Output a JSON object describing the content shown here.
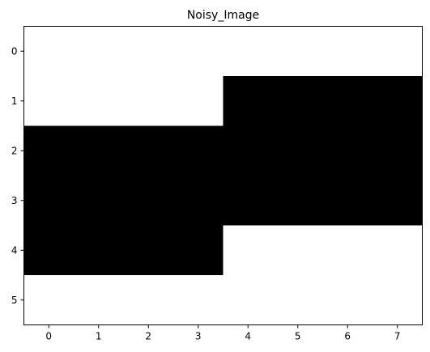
{
  "chart_data": {
    "type": "heatmap",
    "title": "Noisy_Image",
    "xlabel": "",
    "ylabel": "",
    "x_ticks": [
      "0",
      "1",
      "2",
      "3",
      "4",
      "5",
      "6",
      "7"
    ],
    "y_ticks": [
      "0",
      "1",
      "2",
      "3",
      "4",
      "5"
    ],
    "grid": false,
    "colormap": "gray",
    "colors": {
      "0": "#000000",
      "1": "#ffffff"
    },
    "values": [
      [
        1,
        1,
        1,
        1,
        1,
        1,
        1,
        1
      ],
      [
        1,
        1,
        1,
        1,
        0,
        0,
        0,
        0
      ],
      [
        0,
        0,
        0,
        0,
        0,
        0,
        0,
        0
      ],
      [
        0,
        0,
        0,
        0,
        0,
        0,
        0,
        0
      ],
      [
        0,
        0,
        0,
        0,
        1,
        1,
        1,
        1
      ],
      [
        1,
        1,
        1,
        1,
        1,
        1,
        1,
        1
      ]
    ]
  }
}
